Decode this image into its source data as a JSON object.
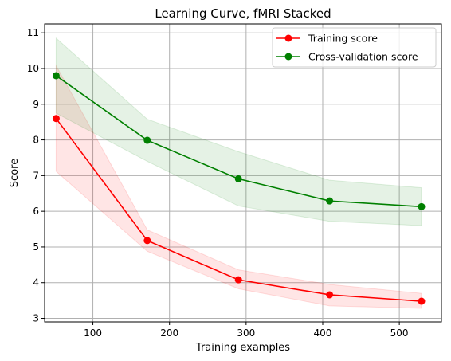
{
  "chart_data": {
    "type": "line",
    "title": "Learning Curve, fMRI Stacked",
    "xlabel": "Training examples",
    "ylabel": "Score",
    "xlim": [
      37,
      555
    ],
    "ylim": [
      2.9,
      11.25
    ],
    "xticks": [
      100,
      200,
      300,
      400,
      500
    ],
    "yticks": [
      3,
      4,
      5,
      6,
      7,
      8,
      9,
      10,
      11
    ],
    "grid": true,
    "legend_position": "top-right",
    "x": [
      52,
      171,
      290,
      409,
      529
    ],
    "series": [
      {
        "name": "Training score",
        "color": "#ff0000",
        "fill_color": "#ff0000",
        "values": [
          8.6,
          5.18,
          4.08,
          3.66,
          3.48
        ],
        "lower": [
          7.12,
          4.88,
          3.83,
          3.35,
          3.28
        ],
        "upper": [
          10.08,
          5.48,
          4.36,
          3.95,
          3.7
        ]
      },
      {
        "name": "Cross-validation score",
        "color": "#008000",
        "fill_color": "#008000",
        "values": [
          9.8,
          7.99,
          6.91,
          6.29,
          6.13
        ],
        "lower": [
          8.75,
          7.4,
          6.15,
          5.72,
          5.6
        ],
        "upper": [
          10.85,
          8.58,
          7.67,
          6.87,
          6.66
        ]
      }
    ]
  }
}
